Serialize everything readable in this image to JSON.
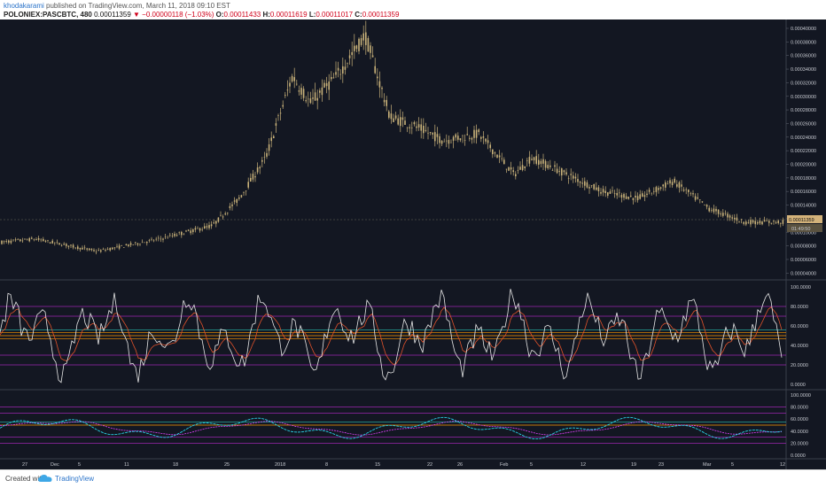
{
  "header": {
    "author": "khodakarami",
    "published_text": " published on TradingView.com, March 11, 2018 09:10 EST",
    "symbol": "POLONIEX:PASCBTC, 480",
    "last": "0.00011359",
    "change_arrow": "▼",
    "change": "−0.00000118 (−1.03%)",
    "o_label": "O:",
    "o_value": "0.00011433",
    "h_label": "H:",
    "h_value": "0.00011619",
    "l_label": "L:",
    "l_value": "0.00011017",
    "c_label": "C:",
    "c_value": "0.00011359"
  },
  "price_axis": {
    "ticks": [
      "0.00040000",
      "0.00038000",
      "0.00036000",
      "0.00034000",
      "0.00032000",
      "0.00030000",
      "0.00028000",
      "0.00026000",
      "0.00024000",
      "0.00022000",
      "0.00020000",
      "0.00018000",
      "0.00016000",
      "0.00014000",
      "0.00012000",
      "0.00010000",
      "0.00008000",
      "0.00006000",
      "0.00004000"
    ],
    "last_price_tag": "0.00011359",
    "countdown_tag": "01:49:50"
  },
  "osc1_axis": {
    "ticks": [
      "100.0000",
      "80.0000",
      "60.0000",
      "40.0000",
      "20.0000",
      "0.0000"
    ]
  },
  "osc2_axis": {
    "ticks": [
      "100.0000",
      "80.0000",
      "60.0000",
      "40.0000",
      "20.0000",
      "0.0000"
    ]
  },
  "time_axis": {
    "labels": [
      "27",
      "Dec",
      "5",
      "11",
      "18",
      "25",
      "2018",
      "8",
      "15",
      "22",
      "26",
      "Feb",
      "5",
      "12",
      "19",
      "23",
      "Mar",
      "5",
      "12"
    ]
  },
  "footer": {
    "created_with": "Created with",
    "brand": "TradingView"
  },
  "colors": {
    "background": "#131722",
    "candle": "#c9b27a",
    "stoch_k": "#e6e6e6",
    "stoch_d": "#e0522b",
    "band_purple": "#9c27b0",
    "band_teal": "#26a69a",
    "band_orange": "#ff9800",
    "osc2_cyan": "#29d3e8",
    "osc2_magenta": "#e040fb",
    "tag_bg": "#d3b27a"
  }
}
